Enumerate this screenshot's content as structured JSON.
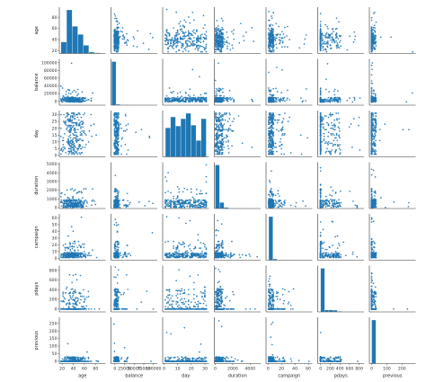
{
  "chart_data": {
    "type": "pairplot",
    "title": "",
    "variables": [
      "age",
      "balance",
      "day",
      "duration",
      "campaign",
      "pdays",
      "previous"
    ],
    "axis_labels": {
      "age": "age",
      "balance": "balance",
      "day": "day",
      "duration": "duration",
      "campaign": "campaign",
      "pdays": "pdays",
      "previous": "previous"
    },
    "ranges": {
      "age": [
        15,
        98
      ],
      "balance": [
        -10000,
        110000
      ],
      "day": [
        -1,
        33
      ],
      "duration": [
        -100,
        5200
      ],
      "campaign": [
        -3,
        66
      ],
      "pdays": [
        -60,
        900
      ],
      "previous": [
        -15,
        290
      ]
    },
    "x_ticks": {
      "age": [
        "20",
        "40",
        "60",
        "80"
      ],
      "balance": [
        "0",
        "25000",
        "50000",
        "75000",
        "100000"
      ],
      "day": [
        "0",
        "10",
        "20",
        "30"
      ],
      "duration": [
        "0",
        "2000",
        "4000"
      ],
      "campaign": [
        "0",
        "20",
        "40",
        "60"
      ],
      "pdays": [
        "0",
        "200",
        "400",
        "600",
        "800"
      ],
      "previous": [
        "0",
        "100",
        "200"
      ]
    },
    "x_tick_values": {
      "age": [
        20,
        40,
        60,
        80
      ],
      "balance": [
        0,
        25000,
        50000,
        75000,
        100000
      ],
      "day": [
        0,
        10,
        20,
        30
      ],
      "duration": [
        0,
        2000,
        4000
      ],
      "campaign": [
        0,
        20,
        40,
        60
      ],
      "pdays": [
        0,
        200,
        400,
        600,
        800
      ],
      "previous": [
        0,
        100,
        200
      ]
    },
    "y_ticks": {
      "age": [
        "20",
        "40",
        "60",
        "80"
      ],
      "balance": [
        "0",
        "20000",
        "40000",
        "60000",
        "80000",
        "100000"
      ],
      "day": [
        "0",
        "5",
        "10",
        "15",
        "20",
        "25",
        "30"
      ],
      "duration": [
        "0",
        "1000",
        "2000",
        "3000",
        "4000",
        "5000"
      ],
      "campaign": [
        "0",
        "10",
        "20",
        "30",
        "40",
        "50",
        "60"
      ],
      "pdays": [
        "0",
        "200",
        "400",
        "600",
        "800"
      ],
      "previous": [
        "0",
        "50",
        "100",
        "150",
        "200",
        "250"
      ]
    },
    "y_tick_values": {
      "age": [
        20,
        40,
        60,
        80
      ],
      "balance": [
        0,
        20000,
        40000,
        60000,
        80000,
        100000
      ],
      "day": [
        0,
        5,
        10,
        15,
        20,
        25,
        30
      ],
      "duration": [
        0,
        1000,
        2000,
        3000,
        4000,
        5000
      ],
      "campaign": [
        0,
        10,
        20,
        30,
        40,
        50,
        60
      ],
      "pdays": [
        0,
        200,
        400,
        600,
        800
      ],
      "previous": [
        0,
        50,
        100,
        150,
        200,
        250
      ]
    },
    "histograms": {
      "age": {
        "edges": [
          18,
          28,
          38,
          48,
          58,
          68,
          78,
          88,
          95
        ],
        "counts": [
          17,
          64,
          40,
          28,
          12,
          2,
          1,
          0.3
        ]
      },
      "balance": {
        "edges": [
          -8000,
          3000,
          14000,
          25000,
          36000,
          47000,
          58000,
          69000,
          80000,
          91000,
          102000
        ],
        "counts": [
          100,
          2,
          0.6,
          0.3,
          0.15,
          0.08,
          0.05,
          0.03,
          0.02,
          0.02
        ]
      },
      "day": {
        "edges": [
          1,
          4.75,
          8.5,
          12.25,
          16,
          19.75,
          23.5,
          27.25,
          31
        ],
        "counts": [
          64,
          88,
          68,
          84,
          96,
          70,
          36,
          84
        ]
      },
      "duration": {
        "edges": [
          0,
          500,
          1000,
          1500,
          2000,
          2500,
          3000,
          3500,
          4000,
          4500,
          5000
        ],
        "counts": [
          100,
          14,
          2.5,
          0.8,
          0.3,
          0.15,
          0.08,
          0.05,
          0.02,
          0.02
        ]
      },
      "campaign": {
        "edges": [
          1,
          7.2,
          13.4,
          19.6,
          25.8,
          32,
          38.2,
          44.4,
          50.6,
          56.8,
          63
        ],
        "counts": [
          100,
          3,
          0.8,
          0.3,
          0.15,
          0.1,
          0.05,
          0.03,
          0.02,
          0.02
        ]
      },
      "pdays": {
        "edges": [
          -1,
          86,
          173,
          260,
          347,
          434,
          521,
          608,
          695,
          782,
          871
        ],
        "counts": [
          100,
          4.5,
          4.5,
          4,
          1.2,
          0.5,
          0.2,
          0.1,
          0.05,
          0.05
        ]
      },
      "previous": {
        "edges": [
          0,
          27.5,
          55,
          82.5,
          110,
          137.5,
          165,
          192.5,
          220,
          247.5,
          275
        ],
        "counts": [
          100,
          0.06,
          0.02,
          0.01,
          0,
          0,
          0,
          0,
          0,
          0.01
        ]
      }
    },
    "colors": {
      "points": "#1f77b4",
      "histogram_fill": "#1f77b4",
      "histogram_edge": "#ffffff",
      "spine": "#333333",
      "background": "#ffffff"
    },
    "grid": false,
    "legend": "none"
  }
}
